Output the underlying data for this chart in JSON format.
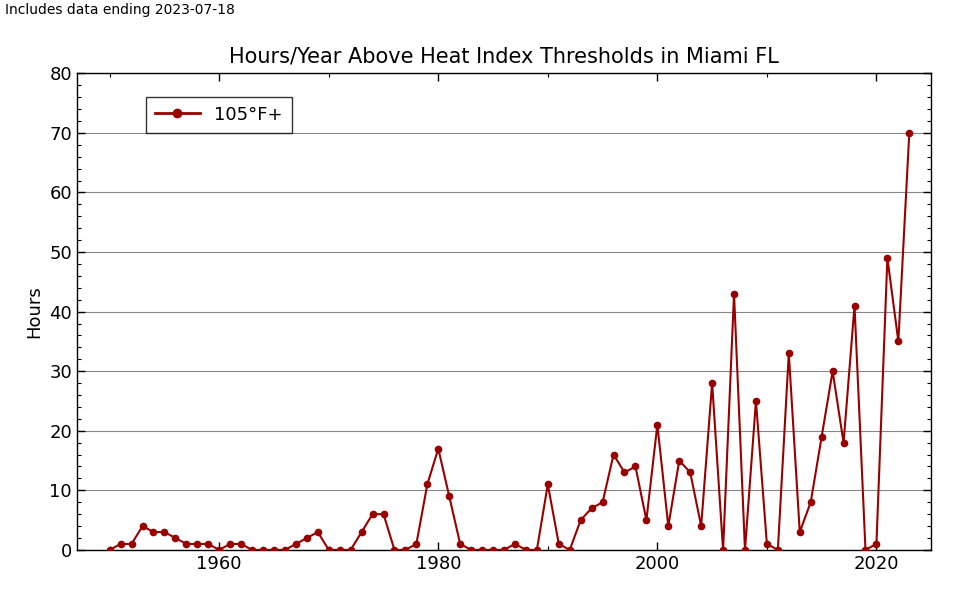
{
  "title": "Hours/Year Above Heat Index Thresholds in Miami FL",
  "subtitle": "Includes data ending 2023-07-18",
  "ylabel": "Hours",
  "ylim": [
    0,
    80
  ],
  "yticks": [
    0,
    10,
    20,
    30,
    40,
    50,
    60,
    70,
    80
  ],
  "line_color": "#990000",
  "legend_label": "105°F+",
  "years": [
    1950,
    1951,
    1952,
    1953,
    1954,
    1955,
    1956,
    1957,
    1958,
    1959,
    1960,
    1961,
    1962,
    1963,
    1964,
    1965,
    1966,
    1967,
    1968,
    1969,
    1970,
    1971,
    1972,
    1973,
    1974,
    1975,
    1976,
    1977,
    1978,
    1979,
    1980,
    1981,
    1982,
    1983,
    1984,
    1985,
    1986,
    1987,
    1988,
    1989,
    1990,
    1991,
    1992,
    1993,
    1994,
    1995,
    1996,
    1997,
    1998,
    1999,
    2000,
    2001,
    2002,
    2003,
    2004,
    2005,
    2006,
    2007,
    2008,
    2009,
    2010,
    2011,
    2012,
    2013,
    2014,
    2015,
    2016,
    2017,
    2018,
    2019,
    2020,
    2021,
    2022,
    2023
  ],
  "values": [
    0,
    1,
    1,
    4,
    3,
    3,
    2,
    1,
    1,
    1,
    0,
    1,
    1,
    0,
    0,
    0,
    0,
    1,
    2,
    3,
    0,
    0,
    0,
    3,
    6,
    6,
    0,
    0,
    1,
    11,
    17,
    9,
    1,
    0,
    0,
    0,
    0,
    1,
    0,
    0,
    11,
    1,
    0,
    5,
    7,
    8,
    16,
    13,
    14,
    5,
    21,
    4,
    15,
    13,
    4,
    28,
    0,
    43,
    0,
    25,
    1,
    0,
    33,
    3,
    8,
    19,
    30,
    18,
    41,
    0,
    1,
    49,
    35,
    70
  ],
  "xlim": [
    1947,
    2025
  ],
  "xticks_major": [
    1960,
    1980,
    2000,
    2020
  ],
  "figsize": [
    9.6,
    6.11
  ],
  "dpi": 100,
  "title_fontsize": 15,
  "label_fontsize": 13,
  "subtitle_fontsize": 10,
  "grid_color": "#888888",
  "grid_linewidth": 0.8,
  "line_width": 1.5,
  "marker_size": 4.5
}
